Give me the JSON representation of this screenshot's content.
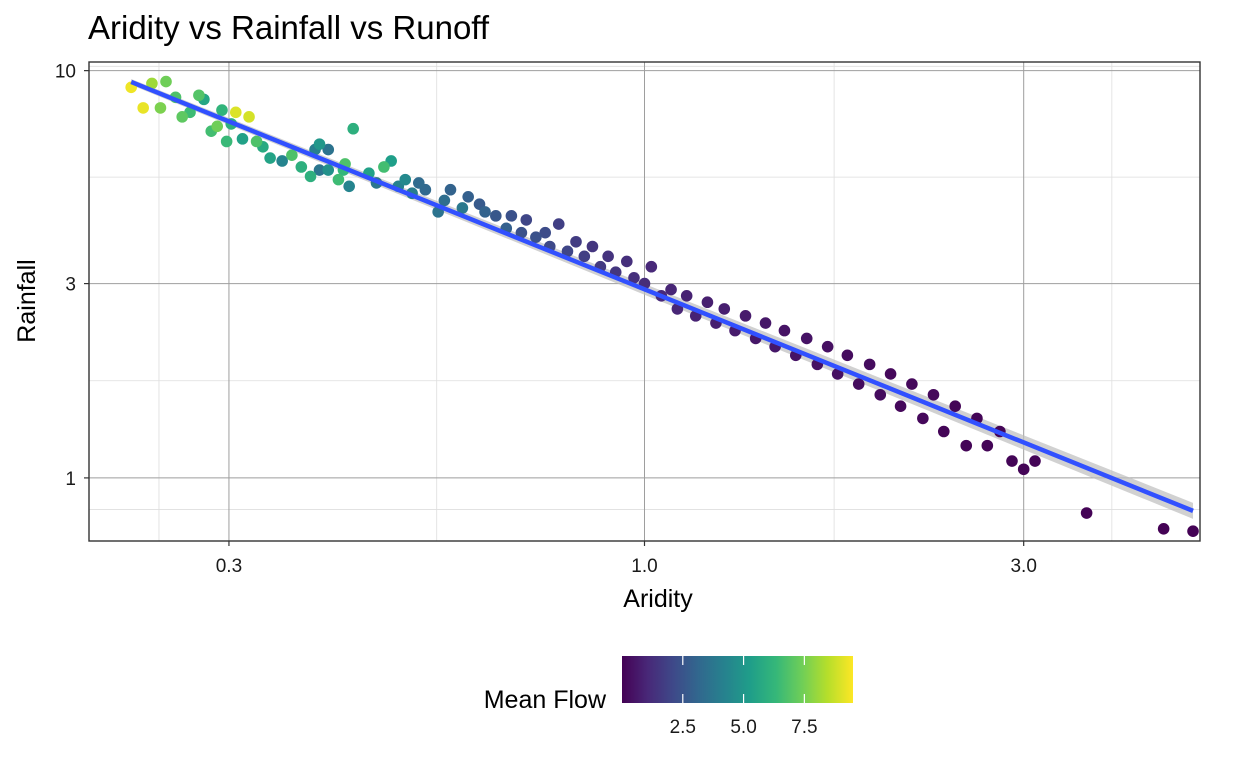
{
  "chart_data": {
    "type": "scatter",
    "title": "Aridity vs Rainfall vs Runoff",
    "xlabel": "Aridity",
    "ylabel": "Rainfall",
    "x_scale": "log10",
    "y_scale": "log10",
    "xlim": [
      0.2,
      5.0
    ],
    "ylim": [
      0.7,
      10.5
    ],
    "x_ticks": [
      {
        "value": 0.3,
        "label": "0.3"
      },
      {
        "value": 1.0,
        "label": "1.0"
      },
      {
        "value": 3.0,
        "label": "3.0"
      }
    ],
    "y_ticks": [
      {
        "value": 1,
        "label": "1"
      },
      {
        "value": 3,
        "label": "3"
      },
      {
        "value": 10,
        "label": "10"
      }
    ],
    "grid": true,
    "color_scale": {
      "name": "Mean Flow",
      "palette": [
        "#440154",
        "#482878",
        "#3e4989",
        "#31688e",
        "#26828e",
        "#1f9e89",
        "#35b779",
        "#6ece58",
        "#b5de2b",
        "#fde725"
      ],
      "range": [
        0.0,
        9.5
      ],
      "ticks": [
        {
          "value": 2.5,
          "label": "2.5"
        },
        {
          "value": 5.0,
          "label": "5.0"
        },
        {
          "value": 7.5,
          "label": "7.5"
        }
      ],
      "legend_position": "bottom"
    },
    "trend_line": {
      "method": "linear fit on log-log scale",
      "color": "#3150ff",
      "points": [
        [
          0.226,
          9.38
        ],
        [
          4.9,
          0.83
        ]
      ],
      "confidence_band": true
    },
    "points": [
      [
        0.226,
        9.1,
        9.3
      ],
      [
        0.234,
        8.1,
        9.2
      ],
      [
        0.24,
        9.3,
        8.1
      ],
      [
        0.246,
        8.1,
        7.6
      ],
      [
        0.25,
        9.4,
        7.4
      ],
      [
        0.257,
        8.6,
        6.8
      ],
      [
        0.262,
        7.7,
        7.1
      ],
      [
        0.268,
        7.9,
        6.5
      ],
      [
        0.275,
        8.7,
        6.9
      ],
      [
        0.279,
        8.5,
        5.6
      ],
      [
        0.285,
        7.1,
        6.6
      ],
      [
        0.29,
        7.3,
        7.4
      ],
      [
        0.294,
        8.0,
        6.2
      ],
      [
        0.298,
        6.7,
        6.4
      ],
      [
        0.302,
        7.4,
        6.0
      ],
      [
        0.306,
        7.9,
        9.0
      ],
      [
        0.312,
        6.8,
        5.4
      ],
      [
        0.318,
        7.7,
        8.9
      ],
      [
        0.325,
        6.7,
        6.8
      ],
      [
        0.331,
        6.5,
        5.8
      ],
      [
        0.338,
        6.1,
        5.5
      ],
      [
        0.35,
        6.0,
        4.3
      ],
      [
        0.36,
        6.2,
        6.8
      ],
      [
        0.37,
        5.8,
        6.0
      ],
      [
        0.38,
        5.5,
        6.0
      ],
      [
        0.385,
        6.4,
        4.1
      ],
      [
        0.39,
        6.6,
        5.0
      ],
      [
        0.39,
        5.7,
        3.7
      ],
      [
        0.4,
        6.4,
        3.6
      ],
      [
        0.4,
        5.7,
        4.8
      ],
      [
        0.412,
        5.4,
        6.5
      ],
      [
        0.418,
        5.7,
        6.3
      ],
      [
        0.42,
        5.9,
        6.8
      ],
      [
        0.425,
        5.2,
        4.3
      ],
      [
        0.43,
        7.2,
        6.0
      ],
      [
        0.45,
        5.6,
        5.4
      ],
      [
        0.46,
        5.3,
        3.7
      ],
      [
        0.47,
        5.8,
        6.6
      ],
      [
        0.48,
        6.0,
        5.3
      ],
      [
        0.49,
        5.2,
        4.2
      ],
      [
        0.5,
        5.4,
        4.5
      ],
      [
        0.51,
        5.0,
        4.0
      ],
      [
        0.52,
        5.3,
        3.3
      ],
      [
        0.53,
        5.1,
        3.2
      ],
      [
        0.55,
        4.5,
        3.6
      ],
      [
        0.56,
        4.8,
        3.4
      ],
      [
        0.57,
        5.1,
        3.0
      ],
      [
        0.59,
        4.6,
        3.8
      ],
      [
        0.6,
        4.9,
        2.9
      ],
      [
        0.62,
        4.7,
        2.7
      ],
      [
        0.63,
        4.5,
        3.0
      ],
      [
        0.65,
        4.4,
        2.6
      ],
      [
        0.67,
        4.1,
        2.9
      ],
      [
        0.68,
        4.4,
        2.4
      ],
      [
        0.7,
        4.0,
        2.4
      ],
      [
        0.71,
        4.3,
        2.0
      ],
      [
        0.73,
        3.9,
        2.4
      ],
      [
        0.75,
        4.0,
        2.2
      ],
      [
        0.76,
        3.7,
        2.1
      ],
      [
        0.78,
        4.2,
        1.8
      ],
      [
        0.8,
        3.6,
        2.0
      ],
      [
        0.82,
        3.8,
        1.7
      ],
      [
        0.84,
        3.5,
        1.8
      ],
      [
        0.86,
        3.7,
        1.5
      ],
      [
        0.88,
        3.3,
        1.6
      ],
      [
        0.9,
        3.5,
        1.4
      ],
      [
        0.92,
        3.2,
        1.5
      ],
      [
        0.95,
        3.4,
        1.3
      ],
      [
        0.97,
        3.1,
        1.3
      ],
      [
        1.0,
        3.0,
        1.2
      ],
      [
        1.02,
        3.3,
        1.1
      ],
      [
        1.05,
        2.8,
        1.1
      ],
      [
        1.08,
        2.9,
        1.0
      ],
      [
        1.1,
        2.6,
        1.0
      ],
      [
        1.13,
        2.8,
        0.9
      ],
      [
        1.16,
        2.5,
        0.9
      ],
      [
        1.2,
        2.7,
        0.8
      ],
      [
        1.23,
        2.4,
        0.8
      ],
      [
        1.26,
        2.6,
        0.8
      ],
      [
        1.3,
        2.3,
        0.7
      ],
      [
        1.34,
        2.5,
        0.7
      ],
      [
        1.38,
        2.2,
        0.6
      ],
      [
        1.42,
        2.4,
        0.6
      ],
      [
        1.46,
        2.1,
        0.6
      ],
      [
        1.5,
        2.3,
        0.5
      ],
      [
        1.55,
        2.0,
        0.5
      ],
      [
        1.6,
        2.2,
        0.5
      ],
      [
        1.65,
        1.9,
        0.4
      ],
      [
        1.7,
        2.1,
        0.4
      ],
      [
        1.75,
        1.8,
        0.4
      ],
      [
        1.8,
        2.0,
        0.3
      ],
      [
        1.86,
        1.7,
        0.3
      ],
      [
        1.92,
        1.9,
        0.3
      ],
      [
        1.98,
        1.6,
        0.3
      ],
      [
        2.04,
        1.8,
        0.2
      ],
      [
        2.1,
        1.5,
        0.2
      ],
      [
        2.17,
        1.7,
        0.2
      ],
      [
        2.24,
        1.4,
        0.2
      ],
      [
        2.31,
        1.6,
        0.2
      ],
      [
        2.38,
        1.3,
        0.1
      ],
      [
        2.46,
        1.5,
        0.1
      ],
      [
        2.54,
        1.2,
        0.1
      ],
      [
        2.62,
        1.4,
        0.1
      ],
      [
        2.7,
        1.2,
        0.1
      ],
      [
        2.8,
        1.3,
        0.1
      ],
      [
        2.9,
        1.1,
        0.1
      ],
      [
        3.0,
        1.05,
        0.1
      ],
      [
        3.1,
        1.1,
        0.1
      ],
      [
        3.6,
        0.82,
        0.05
      ],
      [
        4.5,
        0.75,
        0.03
      ],
      [
        4.9,
        0.74,
        0.02
      ]
    ]
  }
}
